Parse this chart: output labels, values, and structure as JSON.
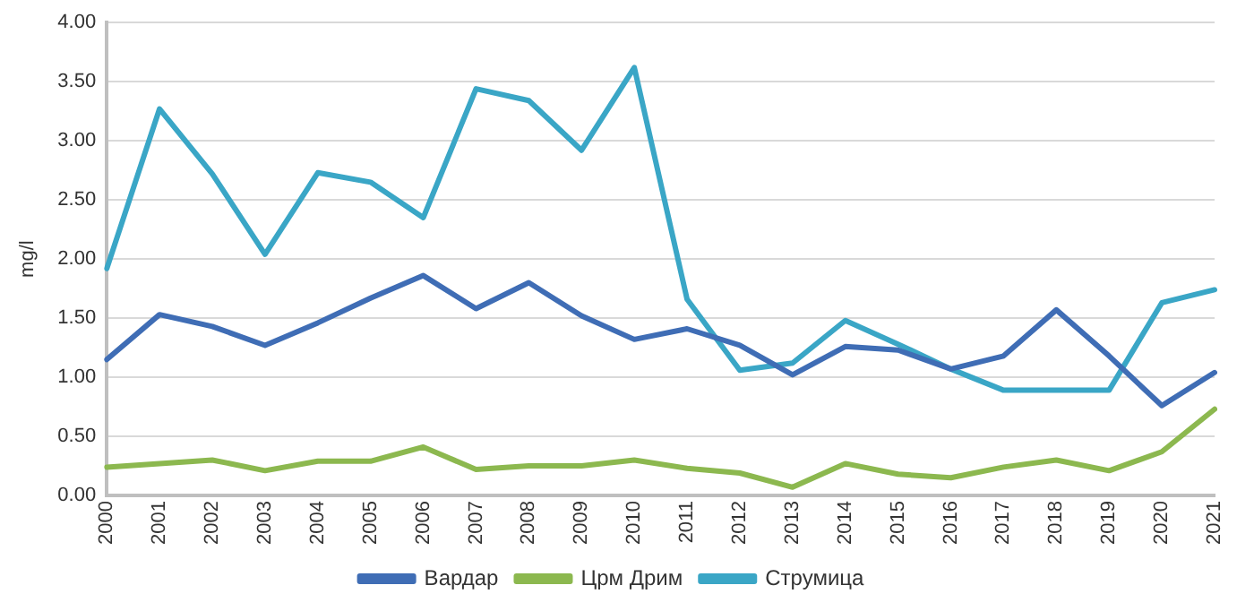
{
  "chart_data": {
    "type": "line",
    "ylabel": "mg/l",
    "categories": [
      "2000",
      "2001",
      "2002",
      "2003",
      "2004",
      "2005",
      "2006",
      "2007",
      "2008",
      "2009",
      "2010",
      "2011",
      "2012",
      "2013",
      "2014",
      "2015",
      "2016",
      "2017",
      "2018",
      "2019",
      "2020",
      "2021"
    ],
    "series": [
      {
        "name": "Вардар",
        "color": "#3f6db5",
        "values": [
          1.15,
          1.53,
          1.43,
          1.27,
          1.46,
          1.67,
          1.86,
          1.58,
          1.8,
          1.52,
          1.32,
          1.41,
          1.27,
          1.02,
          1.26,
          1.23,
          1.07,
          1.18,
          1.57,
          1.18,
          0.76,
          1.04
        ]
      },
      {
        "name": "Црм Дрим",
        "color": "#8cb84f",
        "values": [
          0.24,
          0.27,
          0.3,
          0.21,
          0.29,
          0.29,
          0.41,
          0.22,
          0.25,
          0.25,
          0.3,
          0.23,
          0.19,
          0.07,
          0.27,
          0.18,
          0.15,
          0.24,
          0.3,
          0.21,
          0.37,
          0.73
        ]
      },
      {
        "name": "Струмица",
        "color": "#3aa6c6",
        "values": [
          1.92,
          3.27,
          2.72,
          2.04,
          2.73,
          2.65,
          2.35,
          3.44,
          3.34,
          2.92,
          3.62,
          1.66,
          1.06,
          1.12,
          1.48,
          1.28,
          1.07,
          0.89,
          0.89,
          0.89,
          1.63,
          1.74
        ]
      }
    ],
    "ylim": [
      0,
      4
    ],
    "yticks": [
      {
        "value": 0,
        "label": "0.00"
      },
      {
        "value": 0.5,
        "label": "0.50"
      },
      {
        "value": 1,
        "label": "1.00"
      },
      {
        "value": 1.5,
        "label": "1.50"
      },
      {
        "value": 2,
        "label": "2.00"
      },
      {
        "value": 2.5,
        "label": "2.50"
      },
      {
        "value": 3,
        "label": "3.00"
      },
      {
        "value": 3.5,
        "label": "3.50"
      },
      {
        "value": 4,
        "label": "4.00"
      }
    ],
    "grid": "y",
    "legend": "bottom",
    "marker": "none",
    "line_style": "solid"
  }
}
